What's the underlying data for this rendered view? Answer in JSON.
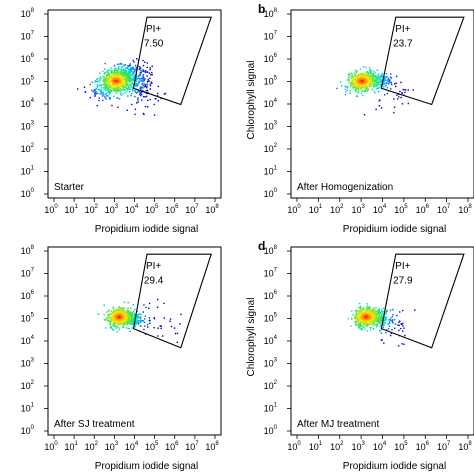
{
  "chart_data": [
    {
      "type": "scatter",
      "panel_letter": "",
      "condition": "Starter",
      "xlabel": "Propidium iodide signal",
      "ylabel": "",
      "xlim": [
        0,
        8
      ],
      "ylim": [
        0,
        8
      ],
      "scale": "log10",
      "gate": {
        "label": "PI+",
        "value": "7.50"
      },
      "clusters": [
        {
          "x": 3.05,
          "y": 5.05,
          "sx": 0.55,
          "sy": 0.28,
          "rot": 0.35,
          "n": 700
        },
        {
          "x": 3.9,
          "y": 5.2,
          "sx": 0.4,
          "sy": 0.35,
          "rot": 0.1,
          "n": 170
        },
        {
          "x": 4.4,
          "y": 4.6,
          "sx": 0.45,
          "sy": 0.45,
          "rot": 0.3,
          "n": 90
        }
      ]
    },
    {
      "type": "scatter",
      "panel_letter": "b",
      "condition": "After Homogenization",
      "xlabel": "Propidium iodide signal",
      "ylabel": "Chlorophyll signal",
      "xlim": [
        0,
        8
      ],
      "ylim": [
        0,
        8
      ],
      "scale": "log10",
      "gate": {
        "label": "PI+",
        "value": "23.7"
      },
      "clusters": [
        {
          "x": 3.0,
          "y": 5.05,
          "sx": 0.32,
          "sy": 0.2,
          "rot": 0.3,
          "n": 500
        },
        {
          "x": 3.75,
          "y": 5.0,
          "sx": 0.3,
          "sy": 0.18,
          "rot": 0.0,
          "n": 160
        },
        {
          "x": 4.4,
          "y": 4.5,
          "sx": 0.45,
          "sy": 0.35,
          "rot": 0.3,
          "n": 40
        }
      ]
    },
    {
      "type": "scatter",
      "panel_letter": "",
      "condition": "After SJ treatment",
      "xlabel": "Propidium iodide signal",
      "ylabel": "",
      "xlim": [
        0,
        8
      ],
      "ylim": [
        0,
        8
      ],
      "scale": "log10",
      "gate": {
        "label": "PI+",
        "value": "29.4"
      },
      "clusters": [
        {
          "x": 3.2,
          "y": 5.1,
          "sx": 0.28,
          "sy": 0.2,
          "rot": 0.3,
          "n": 520
        },
        {
          "x": 3.8,
          "y": 5.0,
          "sx": 0.28,
          "sy": 0.18,
          "rot": 0.0,
          "n": 200
        },
        {
          "x": 5.0,
          "y": 5.0,
          "sx": 0.8,
          "sy": 0.4,
          "rot": -0.3,
          "n": 40
        }
      ]
    },
    {
      "type": "scatter",
      "panel_letter": "d",
      "condition": "After MJ treatment",
      "xlabel": "Propidium iodide signal",
      "ylabel": "Chlorophyll signal",
      "xlim": [
        0,
        8
      ],
      "ylim": [
        0,
        8
      ],
      "scale": "log10",
      "gate": {
        "label": "PI+",
        "value": "27.9"
      },
      "clusters": [
        {
          "x": 3.2,
          "y": 5.1,
          "sx": 0.28,
          "sy": 0.2,
          "rot": 0.3,
          "n": 500
        },
        {
          "x": 3.8,
          "y": 5.05,
          "sx": 0.28,
          "sy": 0.18,
          "rot": 0.0,
          "n": 190
        },
        {
          "x": 4.5,
          "y": 4.6,
          "sx": 0.5,
          "sy": 0.35,
          "rot": 0.3,
          "n": 40
        }
      ]
    }
  ]
}
